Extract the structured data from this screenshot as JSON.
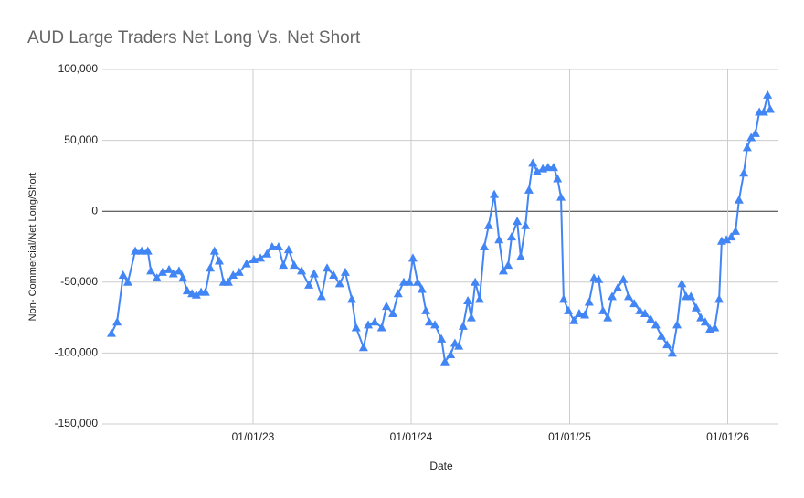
{
  "chart_data": {
    "type": "line",
    "title": "AUD Large Traders Net Long Vs. Net Short",
    "x_label": "Date",
    "y_label": "Non- Commercial/Net Long/Short",
    "xlim": [
      "2022-01-18",
      "2026-04-28"
    ],
    "xticks": [
      {
        "value": "2023-01-01",
        "label": "01/01/23"
      },
      {
        "value": "2024-01-01",
        "label": "01/01/24"
      },
      {
        "value": "2025-01-01",
        "label": "01/01/25"
      },
      {
        "value": "2026-01-01",
        "label": "01/01/26"
      }
    ],
    "ylim": [
      -150000,
      100000
    ],
    "yticks": [
      {
        "value": -150000,
        "label": "-150,000"
      },
      {
        "value": -100000,
        "label": "-100,000"
      },
      {
        "value": -50000,
        "label": "-50,000"
      },
      0,
      {
        "value": 50000,
        "label": "50,000"
      },
      {
        "value": 100000,
        "label": "100,000"
      }
    ],
    "grid": true,
    "x": [
      "2022-02-08",
      "2022-02-21",
      "2022-03-07",
      "2022-03-18",
      "2022-04-04",
      "2022-04-19",
      "2022-05-03",
      "2022-05-10",
      "2022-05-24",
      "2022-06-06",
      "2022-06-21",
      "2022-07-01",
      "2022-07-14",
      "2022-07-23",
      "2022-08-02",
      "2022-08-13",
      "2022-08-23",
      "2022-09-03",
      "2022-09-13",
      "2022-09-24",
      "2022-10-04",
      "2022-10-15",
      "2022-10-25",
      "2022-11-05",
      "2022-11-16",
      "2022-11-30",
      "2022-12-17",
      "2023-01-03",
      "2023-01-18",
      "2023-02-02",
      "2023-02-14",
      "2023-03-01",
      "2023-03-12",
      "2023-03-24",
      "2023-04-06",
      "2023-04-23",
      "2023-05-10",
      "2023-05-22",
      "2023-06-08",
      "2023-06-21",
      "2023-07-06",
      "2023-07-20",
      "2023-08-02",
      "2023-08-17",
      "2023-08-27",
      "2023-09-13",
      "2023-09-24",
      "2023-10-09",
      "2023-10-25",
      "2023-11-05",
      "2023-11-20",
      "2023-12-02",
      "2023-12-15",
      "2023-12-28",
      "2024-01-05",
      "2024-01-16",
      "2024-01-26",
      "2024-02-04",
      "2024-02-12",
      "2024-02-25",
      "2024-03-11",
      "2024-03-19",
      "2024-04-01",
      "2024-04-11",
      "2024-04-20",
      "2024-04-30",
      "2024-05-11",
      "2024-05-19",
      "2024-05-28",
      "2024-06-07",
      "2024-06-18",
      "2024-06-28",
      "2024-07-11",
      "2024-07-22",
      "2024-08-01",
      "2024-08-12",
      "2024-08-20",
      "2024-09-02",
      "2024-09-10",
      "2024-09-21",
      "2024-09-29",
      "2024-10-08",
      "2024-10-18",
      "2024-10-31",
      "2024-11-12",
      "2024-11-25",
      "2024-12-04",
      "2024-12-12",
      "2024-12-18",
      "2024-12-29",
      "2025-01-11",
      "2025-01-23",
      "2025-02-05",
      "2025-02-15",
      "2025-02-26",
      "2025-03-09",
      "2025-03-19",
      "2025-03-30",
      "2025-04-09",
      "2025-04-22",
      "2025-05-05",
      "2025-05-17",
      "2025-05-30",
      "2025-06-12",
      "2025-06-24",
      "2025-07-07",
      "2025-07-19",
      "2025-08-01",
      "2025-08-14",
      "2025-08-26",
      "2025-09-06",
      "2025-09-17",
      "2025-09-27",
      "2025-10-08",
      "2025-10-20",
      "2025-10-31",
      "2025-11-10",
      "2025-11-21",
      "2025-12-02",
      "2025-12-12",
      "2025-12-18",
      "2025-12-29",
      "2026-01-09",
      "2026-01-19",
      "2026-01-27",
      "2026-02-07",
      "2026-02-15",
      "2026-02-24",
      "2026-03-06",
      "2026-03-15",
      "2026-03-25",
      "2026-04-03",
      "2026-04-09"
    ],
    "series": [
      {
        "name": "Non- Commercial/Net Long/Short",
        "color": "#4285f4",
        "values": [
          -86000,
          -78000,
          -45000,
          -50000,
          -28000,
          -28000,
          -28000,
          -42000,
          -47000,
          -43000,
          -41000,
          -44000,
          -42000,
          -47000,
          -56000,
          -58000,
          -59000,
          -57000,
          -57000,
          -40000,
          -28000,
          -35000,
          -50000,
          -50000,
          -45000,
          -43000,
          -37000,
          -34000,
          -33000,
          -30000,
          -25000,
          -25000,
          -38000,
          -27000,
          -38000,
          -42000,
          -52000,
          -44000,
          -60000,
          -40000,
          -45000,
          -51000,
          -43000,
          -62000,
          -82000,
          -96000,
          -80000,
          -78000,
          -82000,
          -67000,
          -72000,
          -58000,
          -50000,
          -50000,
          -33000,
          -50000,
          -55000,
          -70000,
          -78000,
          -80000,
          -90000,
          -106000,
          -101000,
          -93000,
          -95000,
          -81000,
          -63000,
          -75000,
          -50000,
          -62000,
          -25000,
          -10000,
          12000,
          -20000,
          -42000,
          -38000,
          -18000,
          -7000,
          -32000,
          -10000,
          15000,
          34000,
          28000,
          30000,
          31000,
          31000,
          23000,
          10000,
          -62000,
          -70000,
          -77000,
          -72000,
          -73000,
          -64000,
          -47000,
          -48000,
          -70000,
          -75000,
          -60000,
          -54000,
          -48000,
          -60000,
          -65000,
          -70000,
          -72000,
          -76000,
          -80000,
          -88000,
          -94000,
          -100000,
          -80000,
          -51000,
          -60000,
          -60000,
          -68000,
          -75000,
          -78000,
          -83000,
          -82000,
          -62000,
          -21000,
          -20000,
          -18000,
          -14000,
          8000,
          27000,
          45000,
          52000,
          55000,
          70000,
          70000,
          82000,
          72000
        ]
      }
    ]
  }
}
